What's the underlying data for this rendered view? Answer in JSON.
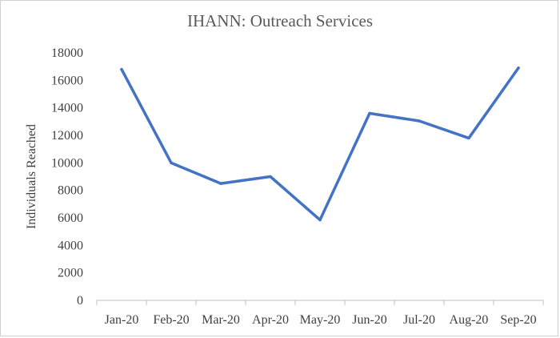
{
  "chart_data": {
    "type": "line",
    "title": "IHANN: Outreach Services",
    "xlabel": "",
    "ylabel": "Individuals Reached",
    "categories": [
      "Jan-20",
      "Feb-20",
      "Mar-20",
      "Apr-20",
      "May-20",
      "Jun-20",
      "Jul-20",
      "Aug-20",
      "Sep-20"
    ],
    "series": [
      {
        "values": [
          16800,
          10000,
          8500,
          9000,
          5850,
          13600,
          13050,
          11800,
          16900
        ],
        "color": "#4472C4"
      }
    ],
    "ylim": [
      0,
      18000
    ],
    "yticks": [
      0,
      2000,
      4000,
      6000,
      8000,
      10000,
      12000,
      14000,
      16000,
      18000
    ],
    "grid": false,
    "axis_color": "#bfbfbf"
  }
}
